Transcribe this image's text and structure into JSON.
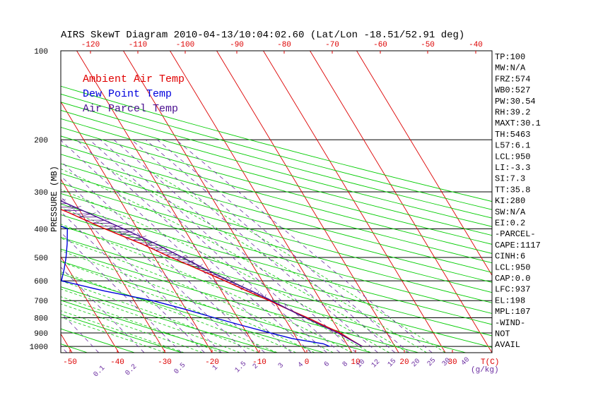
{
  "chart_data": {
    "type": "line",
    "title": "AIRS SkewT Diagram 2010-04-13/10:04:02.60 (Lat/Lon -18.51/52.91 deg)",
    "ylabel": "PRESSURE (MB)",
    "xlabel": "T(C)",
    "mixing_ratio_label": "(g/kg)",
    "y_scale": "log",
    "ylim": [
      1050,
      100
    ],
    "xlim": [
      -50,
      40
    ],
    "pressure_levels": [
      100,
      200,
      300,
      400,
      500,
      600,
      700,
      800,
      900,
      1000
    ],
    "y_tick_labels": [
      "100",
      "200",
      "300",
      "400",
      "500",
      "600",
      "700",
      "800",
      "900",
      "1000"
    ],
    "bottom_temp_ticks": [
      -50,
      -40,
      -30,
      -20,
      -10,
      0,
      10,
      20,
      30
    ],
    "bottom_temp_labels": [
      "-50",
      "-40",
      "-30",
      "-20",
      "-10",
      "0",
      "10",
      "20",
      "30"
    ],
    "top_temp_ticks": [
      -120,
      -110,
      -100,
      -90,
      -80,
      -70,
      -60,
      -50,
      -40
    ],
    "top_temp_labels": [
      "-120",
      "-110",
      "-100",
      "-90",
      "-80",
      "-70",
      "-60",
      "-50",
      "-40"
    ],
    "mixing_ratio_labels": [
      "0.1",
      "0.2",
      "0.5",
      "1",
      "1.5",
      "2",
      "3",
      "4",
      "6",
      "8",
      "10",
      "12",
      "15",
      "20",
      "25",
      "30",
      "40"
    ],
    "mixing_ratio_values": [
      0.1,
      0.2,
      0.5,
      1,
      1.5,
      2,
      3,
      4,
      6,
      8,
      10,
      12,
      15,
      20,
      25,
      30,
      40
    ],
    "grid": true,
    "colors": {
      "ambient": "#e00000",
      "dewpoint": "#0000dd",
      "parcel": "#4a1090",
      "isotherm": "#dd0000",
      "dry_adiabat": "#00cc00",
      "moist_adiabat": "#22cc22",
      "mixing_ratio": "#6a2ca0",
      "isobar": "#000000",
      "hatch": "#5a1a8a",
      "temp_ticks": "#dd0000",
      "mixing_labels": "#6a2ca0"
    },
    "legend": [
      {
        "label": "Ambient Air Temp",
        "color": "#e00000"
      },
      {
        "label": "Dew Point Temp",
        "color": "#0000dd"
      },
      {
        "label": "Air Parcel Temp",
        "color": "#4a1090"
      }
    ],
    "series": [
      {
        "name": "Ambient Air Temp",
        "points": [
          [
            1000,
            23
          ],
          [
            950,
            21.5
          ],
          [
            900,
            20
          ],
          [
            850,
            17.5
          ],
          [
            800,
            15
          ],
          [
            750,
            12
          ],
          [
            700,
            9
          ],
          [
            650,
            5.5
          ],
          [
            600,
            2
          ],
          [
            550,
            -2
          ],
          [
            500,
            -6.5
          ],
          [
            450,
            -11
          ],
          [
            400,
            -17
          ],
          [
            350,
            -23
          ],
          [
            300,
            -31
          ],
          [
            250,
            -40
          ],
          [
            220,
            -46
          ],
          [
            200,
            -51
          ],
          [
            180,
            -56
          ],
          [
            160,
            -63
          ],
          [
            140,
            -70
          ],
          [
            120,
            -75
          ],
          [
            100,
            -80
          ]
        ]
      },
      {
        "name": "Dew Point Temp",
        "points": [
          [
            1000,
            16
          ],
          [
            980,
            15
          ],
          [
            960,
            12
          ],
          [
            940,
            9
          ],
          [
            900,
            5
          ],
          [
            850,
            0
          ],
          [
            800,
            -5
          ],
          [
            750,
            -10
          ],
          [
            700,
            -16
          ],
          [
            650,
            -25
          ],
          [
            600,
            -33
          ],
          [
            550,
            -31
          ],
          [
            500,
            -29
          ],
          [
            450,
            -27
          ],
          [
            400,
            -25
          ],
          [
            350,
            -32
          ],
          [
            300,
            -38
          ],
          [
            250,
            -48
          ],
          [
            200,
            -62
          ],
          [
            180,
            -70
          ],
          [
            160,
            -80
          ],
          [
            150,
            -88
          ],
          [
            140,
            -88
          ],
          [
            100,
            -88
          ]
        ]
      },
      {
        "name": "Air Parcel Temp",
        "points": [
          [
            1000,
            23
          ],
          [
            950,
            21.3
          ],
          [
            900,
            19.5
          ],
          [
            850,
            17
          ],
          [
            800,
            14.5
          ],
          [
            750,
            12
          ],
          [
            700,
            9.5
          ],
          [
            650,
            6.5
          ],
          [
            600,
            3
          ],
          [
            550,
            -0.5
          ],
          [
            500,
            -4
          ],
          [
            450,
            -8
          ],
          [
            400,
            -13
          ],
          [
            350,
            -19
          ],
          [
            300,
            -26
          ],
          [
            250,
            -36
          ],
          [
            220,
            -44
          ],
          [
            200,
            -51
          ],
          [
            180,
            -58
          ],
          [
            160,
            -66
          ],
          [
            140,
            -75
          ],
          [
            120,
            -82
          ],
          [
            100,
            -90
          ]
        ]
      }
    ],
    "stats": [
      {
        "label": "TP:100"
      },
      {
        "label": "MW:N/A"
      },
      {
        "label": "FRZ:574"
      },
      {
        "label": "WB0:527"
      },
      {
        "label": "PW:30.54"
      },
      {
        "label": "RH:39.2"
      },
      {
        "label": "MAXT:30.1"
      },
      {
        "label": "TH:5463"
      },
      {
        "label": "L57:6.1"
      },
      {
        "label": "LCL:950"
      },
      {
        "label": "LI:-3.3"
      },
      {
        "label": "SI:7.3"
      },
      {
        "label": "TT:35.8"
      },
      {
        "label": "KI:280"
      },
      {
        "label": "SW:N/A"
      },
      {
        "label": "EI:0.2"
      },
      {
        "label": "-PARCEL-"
      },
      {
        "label": "CAPE:1117"
      },
      {
        "label": "CINH:6"
      },
      {
        "label": "LCL:950"
      },
      {
        "label": "CAP:0.0"
      },
      {
        "label": "LFC:937"
      },
      {
        "label": "EL:198"
      },
      {
        "label": "MPL:107"
      },
      {
        "label": "-WIND-"
      },
      {
        "label": "NOT"
      },
      {
        "label": "AVAIL"
      }
    ]
  }
}
